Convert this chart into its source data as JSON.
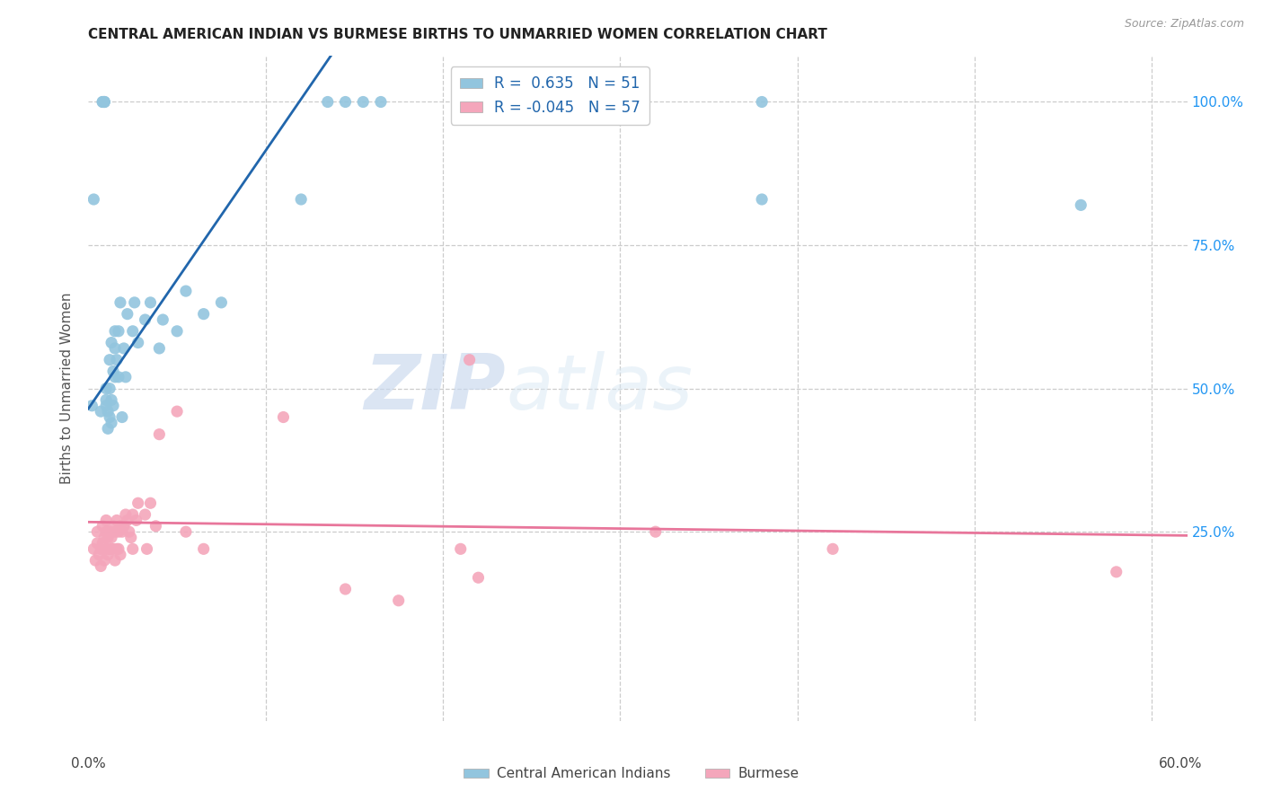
{
  "title": "CENTRAL AMERICAN INDIAN VS BURMESE BIRTHS TO UNMARRIED WOMEN CORRELATION CHART",
  "source": "Source: ZipAtlas.com",
  "ylabel": "Births to Unmarried Women",
  "ytick_labels": [
    "25.0%",
    "50.0%",
    "75.0%",
    "100.0%"
  ],
  "ytick_vals": [
    0.25,
    0.5,
    0.75,
    1.0
  ],
  "watermark_zip": "ZIP",
  "watermark_atlas": "atlas",
  "legend_r_blue": "R =  0.635   N = 51",
  "legend_r_pink": "R = -0.045   N = 57",
  "blue_color": "#92c5de",
  "pink_color": "#f4a6bb",
  "blue_line_color": "#2166ac",
  "pink_line_color": "#e8769b",
  "legend_label_blue": "Central American Indians",
  "legend_label_pink": "Burmese",
  "blue_scatter_x": [
    0.002,
    0.003,
    0.007,
    0.008,
    0.008,
    0.009,
    0.009,
    0.009,
    0.01,
    0.01,
    0.01,
    0.011,
    0.011,
    0.012,
    0.012,
    0.012,
    0.013,
    0.013,
    0.013,
    0.014,
    0.014,
    0.015,
    0.015,
    0.015,
    0.016,
    0.017,
    0.017,
    0.018,
    0.019,
    0.02,
    0.021,
    0.022,
    0.025,
    0.026,
    0.028,
    0.032,
    0.035,
    0.04,
    0.042,
    0.05,
    0.055,
    0.065,
    0.075,
    0.12,
    0.135,
    0.145,
    0.155,
    0.165,
    0.38,
    0.38,
    0.56
  ],
  "blue_scatter_y": [
    0.47,
    0.83,
    0.46,
    1.0,
    1.0,
    1.0,
    1.0,
    1.0,
    0.47,
    0.48,
    0.5,
    0.43,
    0.46,
    0.45,
    0.5,
    0.55,
    0.44,
    0.48,
    0.58,
    0.47,
    0.53,
    0.52,
    0.57,
    0.6,
    0.55,
    0.52,
    0.6,
    0.65,
    0.45,
    0.57,
    0.52,
    0.63,
    0.6,
    0.65,
    0.58,
    0.62,
    0.65,
    0.57,
    0.62,
    0.6,
    0.67,
    0.63,
    0.65,
    0.83,
    1.0,
    1.0,
    1.0,
    1.0,
    1.0,
    0.83,
    0.82
  ],
  "pink_scatter_x": [
    0.003,
    0.004,
    0.005,
    0.005,
    0.006,
    0.007,
    0.007,
    0.008,
    0.008,
    0.009,
    0.009,
    0.01,
    0.01,
    0.01,
    0.011,
    0.011,
    0.012,
    0.012,
    0.013,
    0.013,
    0.014,
    0.014,
    0.015,
    0.015,
    0.016,
    0.016,
    0.017,
    0.017,
    0.018,
    0.018,
    0.019,
    0.02,
    0.021,
    0.022,
    0.023,
    0.024,
    0.025,
    0.025,
    0.027,
    0.028,
    0.032,
    0.033,
    0.035,
    0.038,
    0.04,
    0.05,
    0.055,
    0.065,
    0.11,
    0.145,
    0.175,
    0.21,
    0.215,
    0.22,
    0.32,
    0.42,
    0.58
  ],
  "pink_scatter_y": [
    0.22,
    0.2,
    0.23,
    0.25,
    0.21,
    0.19,
    0.22,
    0.23,
    0.26,
    0.2,
    0.24,
    0.22,
    0.25,
    0.27,
    0.21,
    0.24,
    0.22,
    0.25,
    0.22,
    0.24,
    0.22,
    0.26,
    0.2,
    0.25,
    0.22,
    0.27,
    0.22,
    0.25,
    0.21,
    0.26,
    0.25,
    0.26,
    0.28,
    0.27,
    0.25,
    0.24,
    0.28,
    0.22,
    0.27,
    0.3,
    0.28,
    0.22,
    0.3,
    0.26,
    0.42,
    0.46,
    0.25,
    0.22,
    0.45,
    0.15,
    0.13,
    0.22,
    0.55,
    0.17,
    0.25,
    0.22,
    0.18
  ],
  "xlim": [
    0.0,
    0.62
  ],
  "ylim": [
    -0.08,
    1.08
  ],
  "xgrid_vals": [
    0.1,
    0.2,
    0.3,
    0.4,
    0.5,
    0.6
  ],
  "ygrid_vals": [
    0.25,
    0.5,
    0.75,
    1.0
  ],
  "blue_trend_intercept": 0.465,
  "blue_trend_slope": 4.5,
  "pink_trend_intercept": 0.267,
  "pink_trend_slope": -0.038
}
